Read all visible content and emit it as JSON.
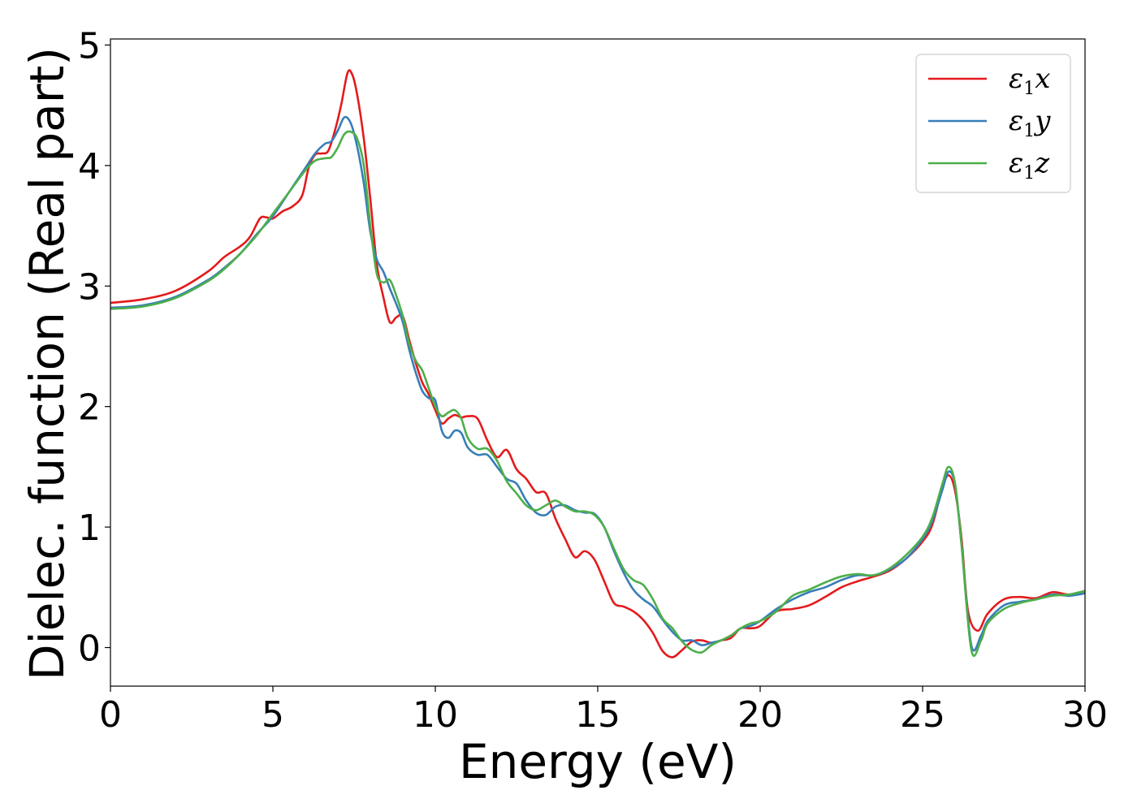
{
  "chart_data": {
    "type": "line",
    "title": "",
    "xlabel": "Energy (eV)",
    "ylabel": "Dielec. function (Real part)",
    "xlim": [
      0,
      30
    ],
    "ylim": [
      -0.32,
      5.05
    ],
    "xticks": [
      0,
      5,
      10,
      15,
      20,
      25,
      30
    ],
    "yticks": [
      0,
      1,
      2,
      3,
      4,
      5
    ],
    "xtick_labels": [
      "0",
      "5",
      "10",
      "15",
      "20",
      "25",
      "30"
    ],
    "ytick_labels": [
      "0",
      "1",
      "2",
      "3",
      "4",
      "5"
    ],
    "grid": false,
    "legend_position": "top-right",
    "series": [
      {
        "name": "ε₁x",
        "legend_main": "ε",
        "legend_sub": "1",
        "legend_tail": "x",
        "color": "#e41a1c",
        "x": [
          0,
          1,
          2,
          3,
          3.5,
          4,
          4.3,
          4.6,
          4.8,
          5.0,
          5.3,
          5.6,
          5.9,
          6.1,
          6.3,
          6.5,
          6.7,
          6.9,
          7.1,
          7.3,
          7.45,
          7.6,
          7.8,
          8.0,
          8.2,
          8.4,
          8.6,
          8.8,
          9.0,
          9.2,
          9.4,
          9.6,
          9.8,
          10.0,
          10.2,
          10.4,
          10.6,
          10.8,
          11.0,
          11.3,
          11.6,
          11.9,
          12.2,
          12.5,
          12.8,
          13.1,
          13.4,
          13.7,
          14.0,
          14.3,
          14.6,
          14.9,
          15.2,
          15.5,
          15.8,
          16.1,
          16.4,
          16.7,
          17.0,
          17.3,
          17.6,
          17.9,
          18.2,
          18.5,
          18.8,
          19.1,
          19.4,
          19.7,
          20.0,
          20.5,
          21.0,
          21.5,
          22.0,
          22.5,
          23.0,
          23.5,
          24.0,
          24.5,
          25.0,
          25.3,
          25.6,
          25.8,
          26.0,
          26.2,
          26.4,
          26.7,
          27.0,
          27.5,
          28.0,
          28.5,
          29.0,
          29.5,
          30.0
        ],
        "y": [
          2.86,
          2.89,
          2.96,
          3.12,
          3.24,
          3.33,
          3.41,
          3.56,
          3.57,
          3.56,
          3.62,
          3.66,
          3.75,
          3.98,
          4.09,
          4.1,
          4.12,
          4.28,
          4.5,
          4.77,
          4.75,
          4.58,
          4.22,
          3.72,
          3.18,
          2.91,
          2.7,
          2.74,
          2.75,
          2.55,
          2.36,
          2.2,
          2.1,
          1.97,
          1.86,
          1.9,
          1.93,
          1.91,
          1.92,
          1.9,
          1.72,
          1.58,
          1.64,
          1.48,
          1.4,
          1.29,
          1.28,
          1.07,
          0.9,
          0.75,
          0.8,
          0.73,
          0.55,
          0.37,
          0.34,
          0.3,
          0.23,
          0.12,
          -0.03,
          -0.08,
          -0.02,
          0.05,
          0.06,
          0.04,
          0.06,
          0.08,
          0.16,
          0.16,
          0.18,
          0.3,
          0.32,
          0.35,
          0.42,
          0.5,
          0.55,
          0.59,
          0.64,
          0.74,
          0.88,
          1.02,
          1.32,
          1.43,
          1.3,
          0.9,
          0.3,
          0.14,
          0.28,
          0.4,
          0.42,
          0.41,
          0.46,
          0.44,
          0.47
        ]
      },
      {
        "name": "ε₁y",
        "legend_main": "ε",
        "legend_sub": "1",
        "legend_tail": "y",
        "color": "#377eb8",
        "x": [
          0,
          1,
          2,
          3,
          3.5,
          4,
          4.5,
          5.0,
          5.5,
          6.0,
          6.3,
          6.6,
          6.8,
          7.0,
          7.2,
          7.4,
          7.6,
          7.8,
          8.0,
          8.2,
          8.4,
          8.6,
          8.8,
          9.0,
          9.2,
          9.4,
          9.6,
          9.8,
          10.0,
          10.2,
          10.4,
          10.6,
          10.8,
          11.0,
          11.3,
          11.6,
          11.9,
          12.2,
          12.5,
          12.8,
          13.1,
          13.4,
          13.7,
          14.0,
          14.3,
          14.6,
          14.9,
          15.2,
          15.5,
          15.8,
          16.1,
          16.4,
          16.7,
          17.0,
          17.3,
          17.6,
          17.9,
          18.2,
          18.5,
          18.8,
          19.1,
          19.4,
          19.7,
          20.0,
          20.5,
          21.0,
          21.5,
          22.0,
          22.5,
          23.0,
          23.5,
          24.0,
          24.5,
          25.0,
          25.3,
          25.6,
          25.8,
          26.0,
          26.2,
          26.5,
          26.8,
          27.0,
          27.5,
          28.0,
          28.5,
          29.0,
          29.5,
          30.0
        ],
        "y": [
          2.82,
          2.84,
          2.91,
          3.05,
          3.15,
          3.27,
          3.43,
          3.58,
          3.78,
          3.98,
          4.1,
          4.18,
          4.2,
          4.29,
          4.4,
          4.35,
          4.15,
          3.85,
          3.45,
          3.22,
          3.12,
          2.98,
          2.85,
          2.7,
          2.47,
          2.28,
          2.13,
          2.07,
          2.05,
          1.8,
          1.74,
          1.8,
          1.78,
          1.66,
          1.6,
          1.6,
          1.5,
          1.4,
          1.36,
          1.22,
          1.12,
          1.1,
          1.17,
          1.18,
          1.14,
          1.12,
          1.11,
          1.0,
          0.8,
          0.62,
          0.48,
          0.4,
          0.34,
          0.23,
          0.13,
          0.06,
          0.06,
          0.02,
          0.04,
          0.06,
          0.1,
          0.16,
          0.18,
          0.22,
          0.32,
          0.4,
          0.46,
          0.5,
          0.56,
          0.6,
          0.6,
          0.65,
          0.74,
          0.9,
          1.05,
          1.3,
          1.46,
          1.35,
          0.85,
          0.02,
          0.1,
          0.22,
          0.35,
          0.38,
          0.4,
          0.44,
          0.43,
          0.45
        ]
      },
      {
        "name": "ε₁z",
        "legend_main": "ε",
        "legend_sub": "1",
        "legend_tail": "z",
        "color": "#4daf4a",
        "x": [
          0,
          1,
          2,
          3,
          3.5,
          4,
          4.5,
          5.0,
          5.5,
          6.0,
          6.3,
          6.6,
          6.8,
          7.0,
          7.2,
          7.4,
          7.6,
          7.8,
          8.0,
          8.2,
          8.4,
          8.6,
          8.8,
          9.0,
          9.2,
          9.4,
          9.6,
          9.8,
          10.0,
          10.2,
          10.4,
          10.6,
          10.8,
          11.0,
          11.3,
          11.6,
          11.9,
          12.2,
          12.5,
          12.8,
          13.1,
          13.4,
          13.7,
          14.0,
          14.3,
          14.6,
          14.9,
          15.2,
          15.5,
          15.8,
          16.1,
          16.4,
          16.7,
          17.0,
          17.3,
          17.6,
          17.9,
          18.2,
          18.5,
          18.8,
          19.1,
          19.4,
          19.7,
          20.0,
          20.5,
          21.0,
          21.5,
          22.0,
          22.5,
          23.0,
          23.5,
          24.0,
          24.5,
          25.0,
          25.3,
          25.6,
          25.8,
          26.0,
          26.2,
          26.5,
          26.8,
          27.0,
          27.5,
          28.0,
          28.5,
          29.0,
          29.5,
          30.0
        ],
        "y": [
          2.81,
          2.83,
          2.9,
          3.04,
          3.14,
          3.27,
          3.42,
          3.6,
          3.78,
          3.96,
          4.04,
          4.06,
          4.07,
          4.15,
          4.26,
          4.28,
          4.22,
          4.0,
          3.5,
          3.1,
          3.03,
          3.05,
          2.92,
          2.75,
          2.52,
          2.38,
          2.3,
          2.15,
          2.0,
          1.92,
          1.95,
          1.97,
          1.9,
          1.74,
          1.65,
          1.65,
          1.55,
          1.38,
          1.28,
          1.18,
          1.14,
          1.18,
          1.22,
          1.17,
          1.13,
          1.13,
          1.1,
          1.0,
          0.82,
          0.65,
          0.56,
          0.52,
          0.4,
          0.24,
          0.16,
          0.05,
          -0.02,
          -0.04,
          0.02,
          0.06,
          0.1,
          0.16,
          0.2,
          0.22,
          0.3,
          0.43,
          0.48,
          0.54,
          0.59,
          0.61,
          0.6,
          0.66,
          0.77,
          0.92,
          1.08,
          1.35,
          1.5,
          1.36,
          0.85,
          -0.02,
          0.06,
          0.2,
          0.32,
          0.37,
          0.4,
          0.43,
          0.44,
          0.47
        ]
      }
    ]
  }
}
